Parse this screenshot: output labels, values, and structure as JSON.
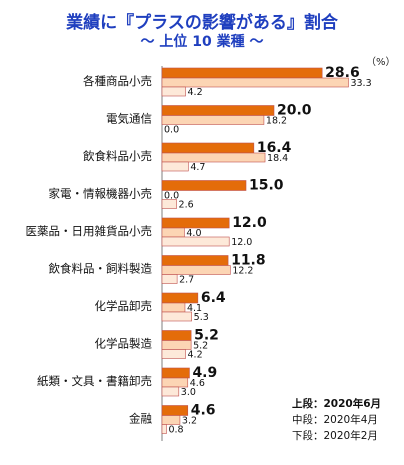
{
  "header": {
    "title": "業績に『プラスの影響がある』割合",
    "subtitle": "～ 上位 10 業種 ～",
    "unit": "（%）"
  },
  "legend": {
    "upper": "上段：2020年6月",
    "middle": "中段：2020年4月",
    "lower": "下段：2020年2月"
  },
  "colors": {
    "upper": "#e46c0a",
    "middle": "#fcd5b4",
    "lower": "#fde9d9",
    "bar_border": "#c0504d",
    "title": "#1f3fbf",
    "axis": "#7f7f7f"
  },
  "chart_data": {
    "type": "bar",
    "orientation": "horizontal",
    "xlim": [
      0,
      35
    ],
    "categories": [
      "各種商品小売",
      "電気通信",
      "飲食料品小売",
      "家電・情報機器小売",
      "医薬品・日用雑貨品小売",
      "飲食料品・飼料製造",
      "化学品卸売",
      "化学品製造",
      "紙類・文具・書籍卸売",
      "金融"
    ],
    "series": [
      {
        "name": "2020年6月",
        "values": [
          "28.6",
          "20.0",
          "16.4",
          "15.0",
          "12.0",
          "11.8",
          "6.4",
          "5.2",
          "4.9",
          "4.6"
        ]
      },
      {
        "name": "2020年4月",
        "values": [
          "33.3",
          "18.2",
          "18.4",
          "0.0",
          "4.0",
          "12.2",
          "4.1",
          "5.2",
          "4.6",
          "3.2"
        ]
      },
      {
        "name": "2020年2月",
        "values": [
          "4.2",
          "0.0",
          "4.7",
          "2.6",
          "12.0",
          "2.7",
          "5.3",
          "4.2",
          "3.0",
          "0.8"
        ]
      }
    ]
  }
}
